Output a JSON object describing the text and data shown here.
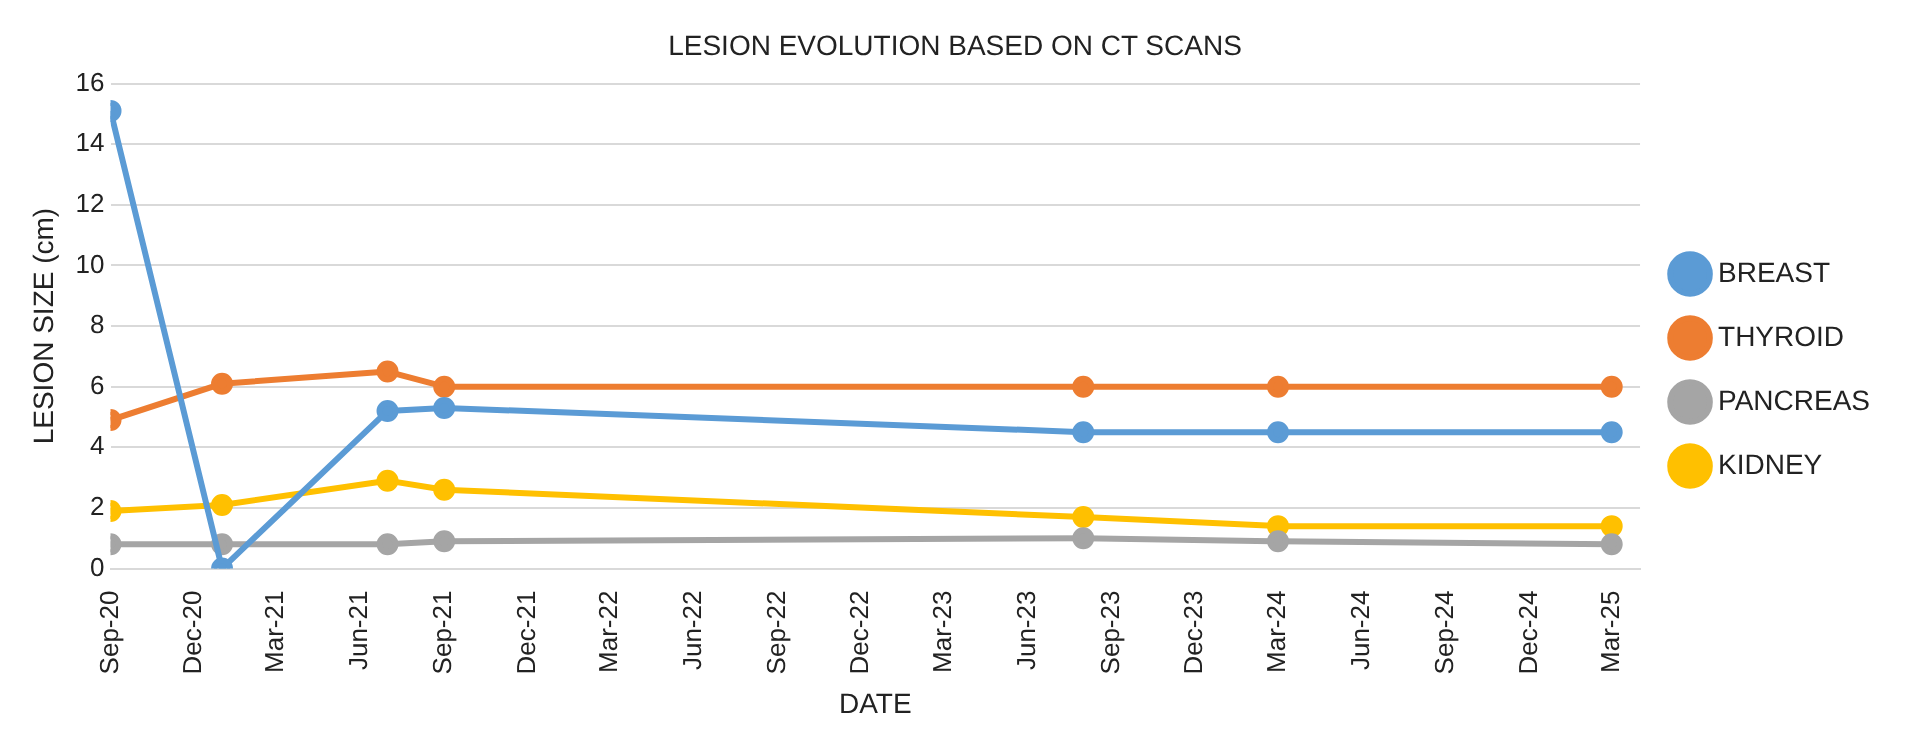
{
  "chart_data": {
    "type": "line",
    "title": "LESION EVOLUTION BASED ON CT SCANS",
    "xlabel": "DATE",
    "ylabel": "LESION SIZE (cm)",
    "x": [
      "2020-09",
      "2021-01",
      "2021-07",
      "2021-09",
      "2023-08",
      "2024-03",
      "2025-03"
    ],
    "series": [
      {
        "name": "BREAST",
        "color": "#5b9bd5",
        "values": [
          15.1,
          0,
          5.2,
          5.3,
          4.5,
          4.5,
          4.5
        ]
      },
      {
        "name": "THYROID",
        "color": "#ed7d31",
        "values": [
          4.9,
          6.1,
          6.5,
          6.0,
          6.0,
          6.0,
          6.0
        ]
      },
      {
        "name": "PANCREAS",
        "color": "#a5a5a5",
        "values": [
          0.8,
          0.8,
          0.8,
          0.9,
          1.0,
          0.9,
          0.8
        ]
      },
      {
        "name": "KIDNEY",
        "color": "#ffc000",
        "values": [
          1.9,
          2.1,
          2.9,
          2.6,
          1.7,
          1.4,
          1.4
        ]
      }
    ],
    "xlim": [
      "2020-09",
      "2025-04"
    ],
    "xticks": [
      {
        "value": "2020-09",
        "label": "Sep-20"
      },
      {
        "value": "2020-12",
        "label": "Dec-20"
      },
      {
        "value": "2021-03",
        "label": "Mar-21"
      },
      {
        "value": "2021-06",
        "label": "Jun-21"
      },
      {
        "value": "2021-09",
        "label": "Sep-21"
      },
      {
        "value": "2021-12",
        "label": "Dec-21"
      },
      {
        "value": "2022-03",
        "label": "Mar-22"
      },
      {
        "value": "2022-06",
        "label": "Jun-22"
      },
      {
        "value": "2022-09",
        "label": "Sep-22"
      },
      {
        "value": "2022-12",
        "label": "Dec-22"
      },
      {
        "value": "2023-03",
        "label": "Mar-23"
      },
      {
        "value": "2023-06",
        "label": "Jun-23"
      },
      {
        "value": "2023-09",
        "label": "Sep-23"
      },
      {
        "value": "2023-12",
        "label": "Dec-23"
      },
      {
        "value": "2024-03",
        "label": "Mar-24"
      },
      {
        "value": "2024-06",
        "label": "Jun-24"
      },
      {
        "value": "2024-09",
        "label": "Sep-24"
      },
      {
        "value": "2024-12",
        "label": "Dec-24"
      },
      {
        "value": "2025-03",
        "label": "Mar-25"
      }
    ],
    "ylim": [
      0,
      16
    ],
    "yticks": [
      0,
      2,
      4,
      6,
      8,
      10,
      12,
      14,
      16
    ],
    "grid": "y",
    "legend": "right",
    "marker": "circle",
    "line_style": "solid"
  }
}
